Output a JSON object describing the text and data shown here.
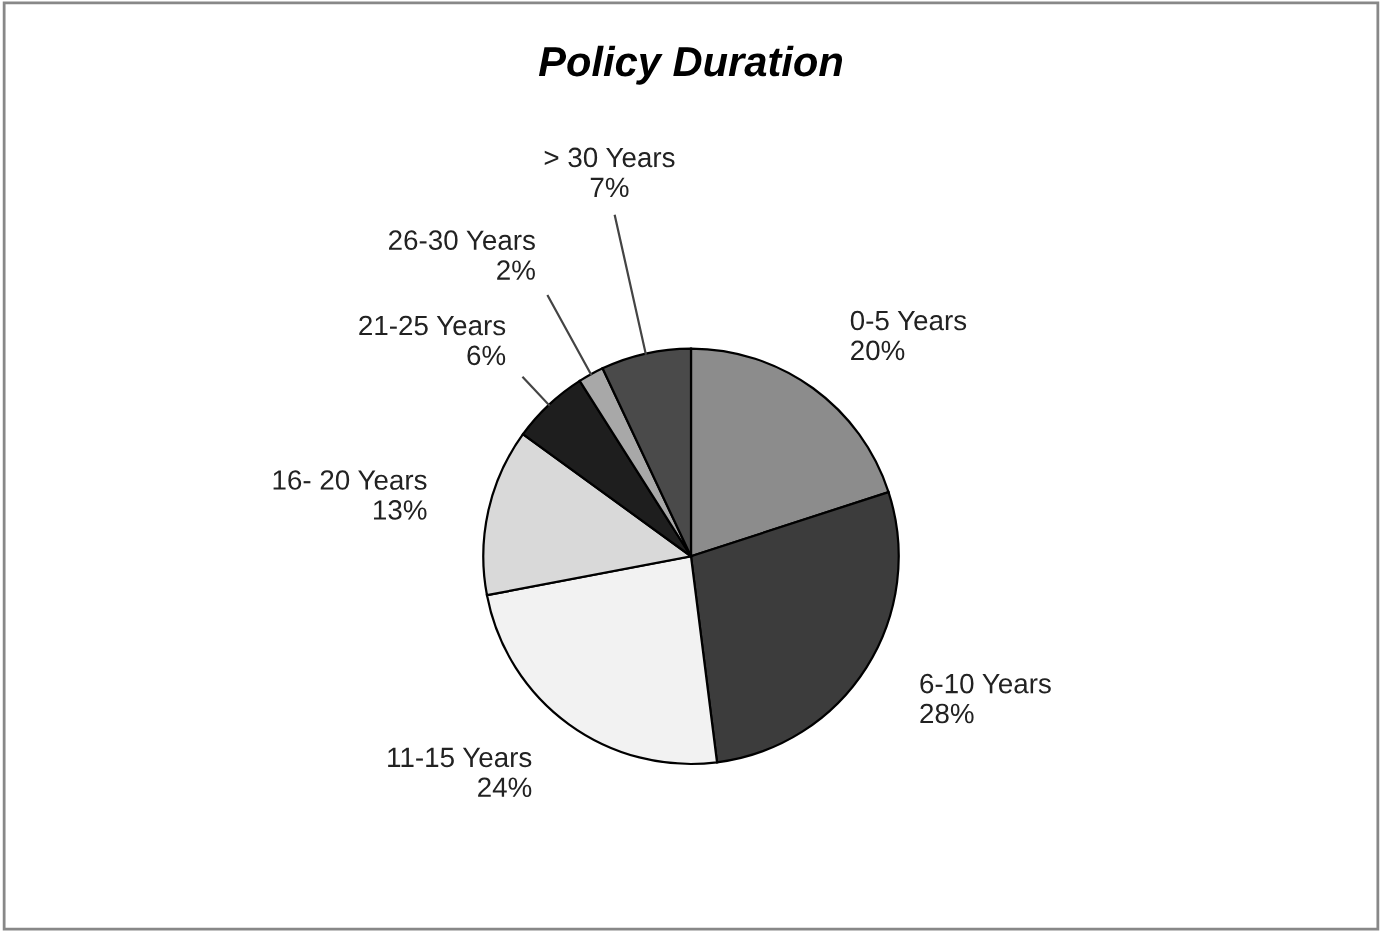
{
  "chart_data": {
    "type": "pie",
    "title": "Policy Duration",
    "categories": [
      "0-5 Years",
      "6-10 Years",
      "11-15 Years",
      "16- 20 Years",
      "21-25 Years",
      "26-30 Years",
      "> 30 Years"
    ],
    "values": [
      20,
      28,
      24,
      13,
      6,
      2,
      7
    ],
    "value_labels": [
      "20%",
      "28%",
      "24%",
      "13%",
      "6%",
      "2%",
      "7%"
    ],
    "colors": [
      "#8c8c8c",
      "#3c3c3c",
      "#f2f2f2",
      "#d9d9d9",
      "#1e1e1e",
      "#a8a8a8",
      "#4a4a4a"
    ],
    "legend": false
  }
}
